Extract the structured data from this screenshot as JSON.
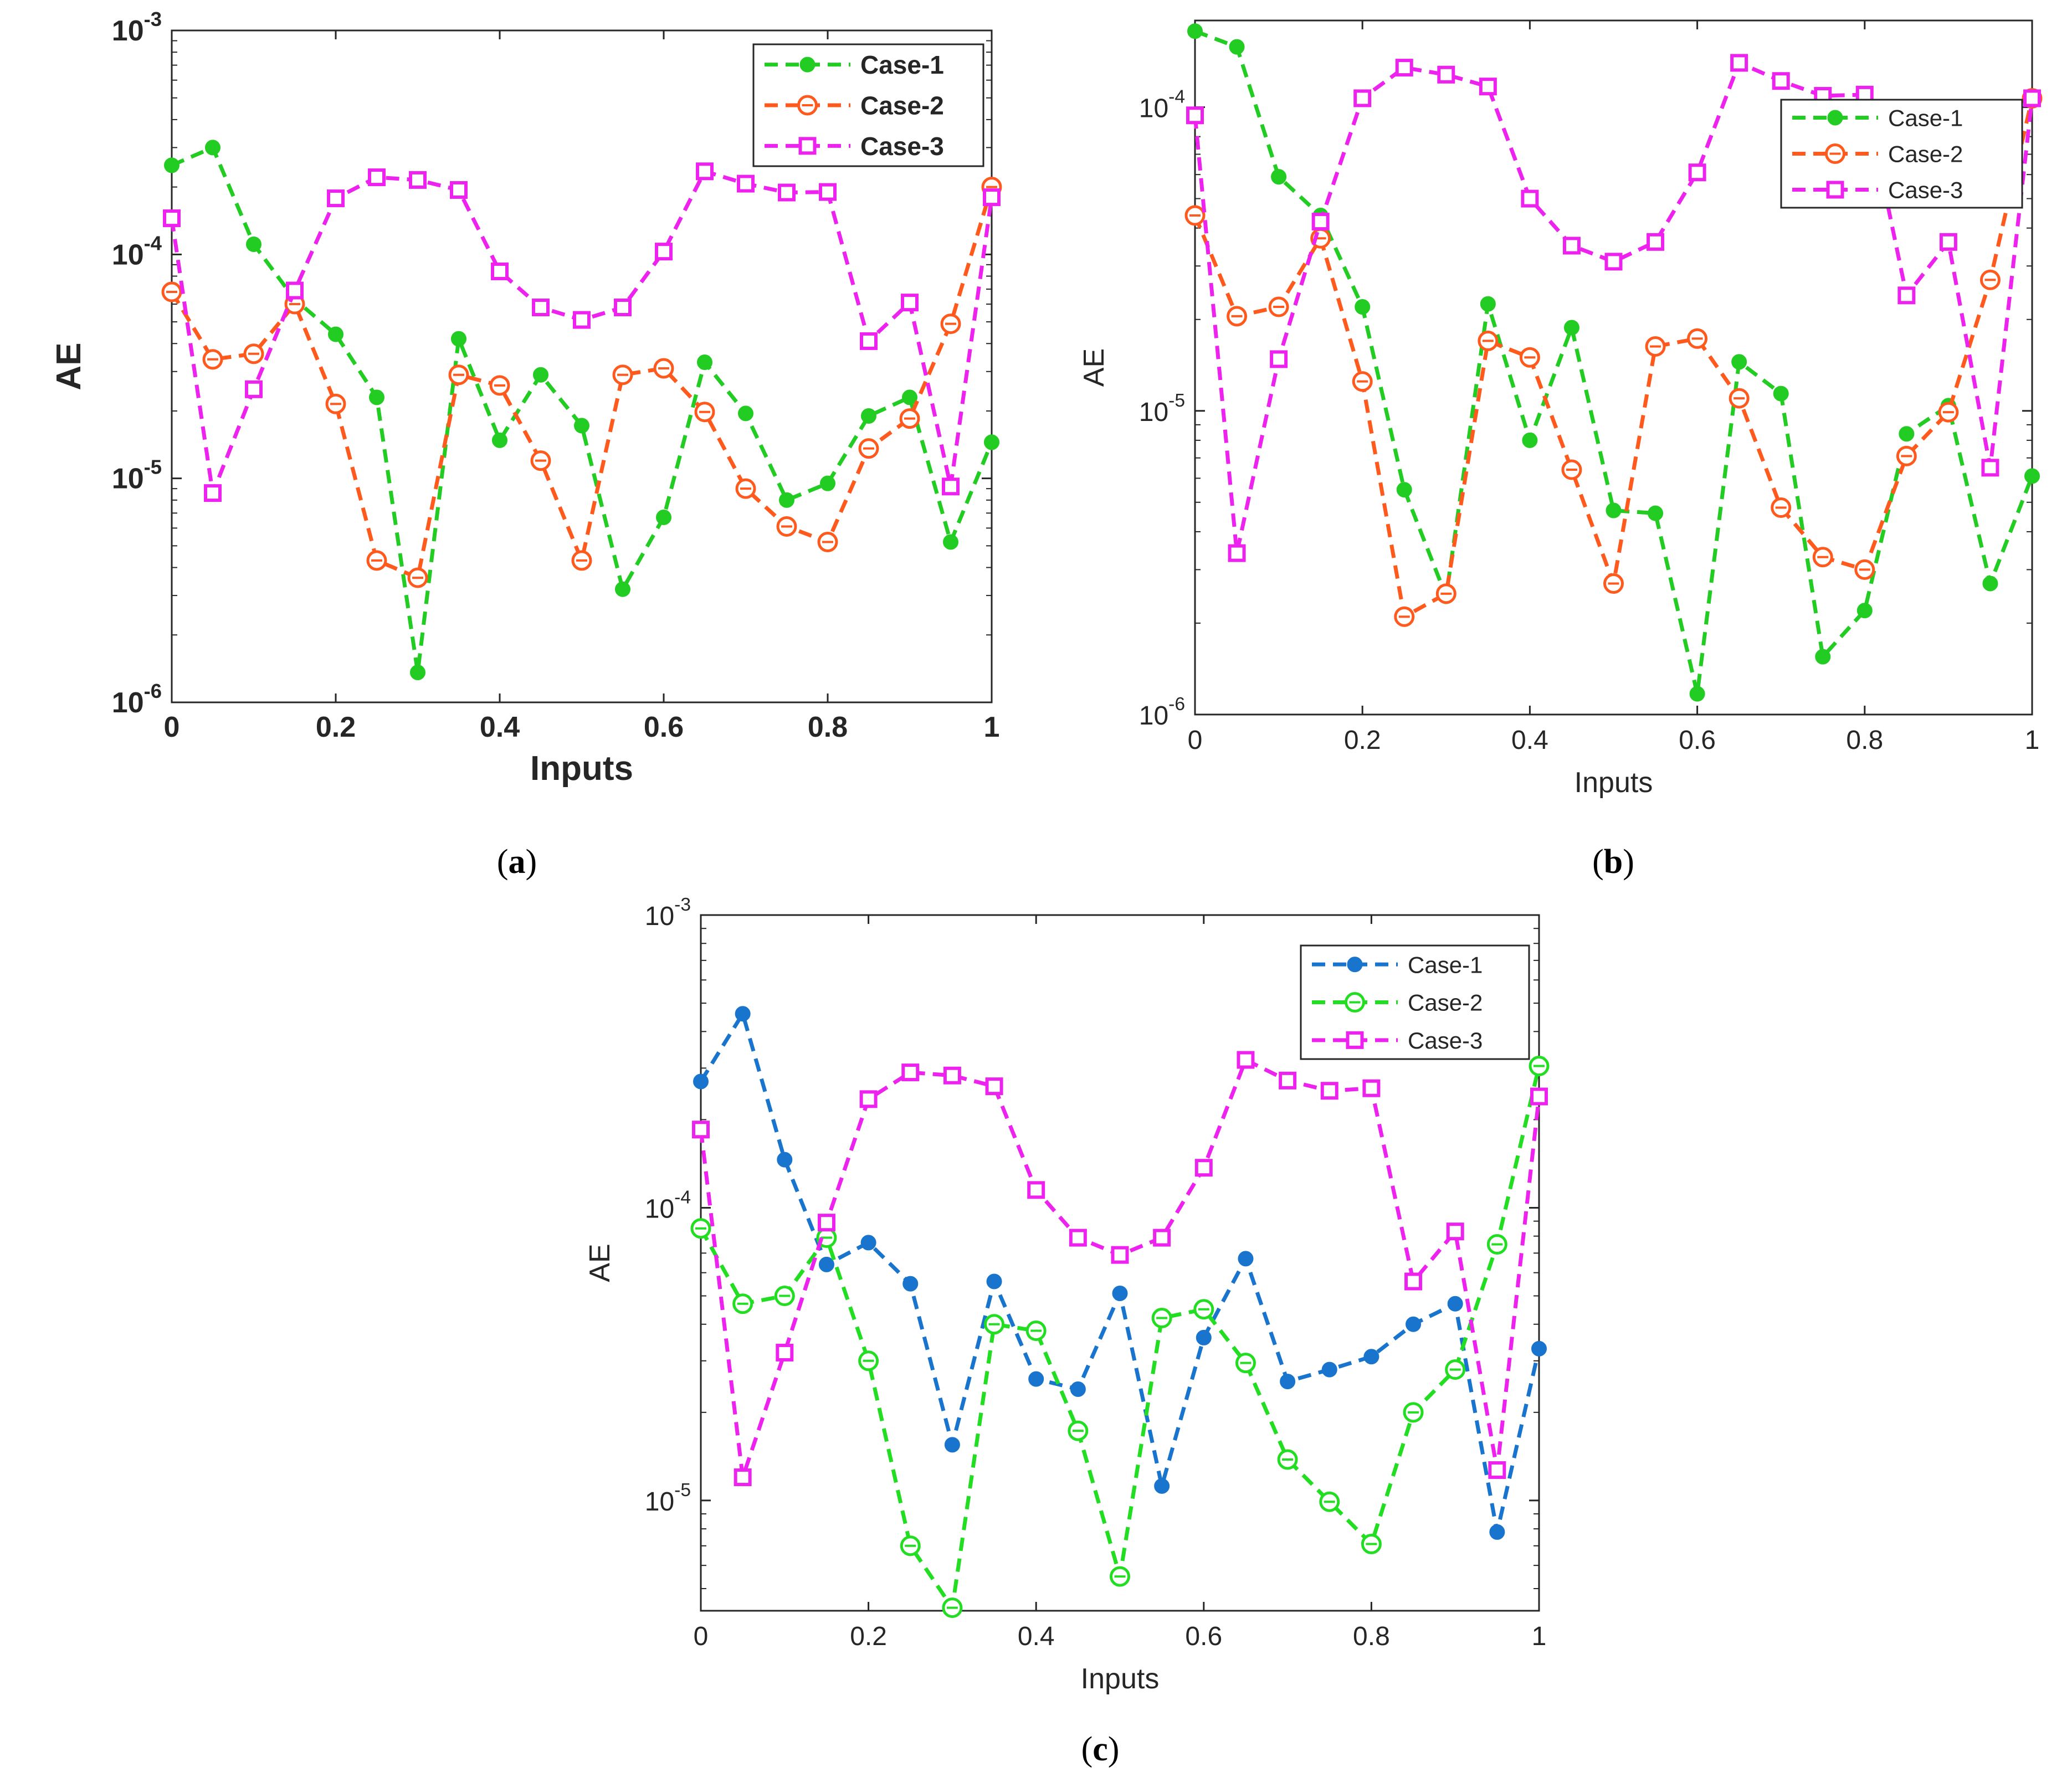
{
  "figure": {
    "panels": [
      {
        "label": "a"
      },
      {
        "label": "b"
      },
      {
        "label": "c"
      }
    ]
  },
  "chart_data": [
    {
      "type": "line",
      "panel": "a",
      "title": "",
      "xlabel": "Inputs",
      "ylabel": "AE",
      "yscale": "log",
      "xlim": [
        0,
        1
      ],
      "ylim": [
        1e-06,
        0.001
      ],
      "bold_text": true,
      "x": [
        0,
        0.05,
        0.1,
        0.15,
        0.2,
        0.25,
        0.3,
        0.35,
        0.4,
        0.45,
        0.5,
        0.55,
        0.6,
        0.65,
        0.7,
        0.75,
        0.8,
        0.85,
        0.9,
        0.95,
        1
      ],
      "xticks": [
        "0",
        "0.2",
        "0.4",
        "0.6",
        "0.8",
        "1"
      ],
      "yticks": [
        {
          "base": "10",
          "exp": "-6"
        },
        {
          "base": "10",
          "exp": "-5"
        },
        {
          "base": "10",
          "exp": "-4"
        },
        {
          "base": "10",
          "exp": "-3"
        }
      ],
      "legend_position": "top-right",
      "series": [
        {
          "name": "Case-1",
          "color": "#22cc22",
          "marker": "dot",
          "values": [
            0.00025,
            0.0003,
            0.000111,
            6.3e-05,
            4.4e-05,
            2.3e-05,
            1.36e-06,
            4.2e-05,
            1.48e-05,
            2.9e-05,
            1.72e-05,
            3.2e-06,
            6.7e-06,
            3.3e-05,
            1.95e-05,
            8e-06,
            9.5e-06,
            1.9e-05,
            2.3e-05,
            5.2e-06,
            1.45e-05
          ]
        },
        {
          "name": "Case-2",
          "color": "#ff5a1e",
          "marker": "circle",
          "values": [
            6.8e-05,
            3.4e-05,
            3.6e-05,
            6e-05,
            2.15e-05,
            4.3e-06,
            3.6e-06,
            2.9e-05,
            2.6e-05,
            1.2e-05,
            4.3e-06,
            2.9e-05,
            3.1e-05,
            1.98e-05,
            9e-06,
            6.1e-06,
            5.2e-06,
            1.36e-05,
            1.85e-05,
            4.9e-05,
            0.0002
          ]
        },
        {
          "name": "Case-3",
          "color": "#ee22ee",
          "marker": "square",
          "values": [
            0.000145,
            8.6e-06,
            2.5e-05,
            6.9e-05,
            0.000178,
            0.000221,
            0.000215,
            0.000194,
            8.4e-05,
            5.8e-05,
            5.1e-05,
            5.8e-05,
            0.000103,
            0.000235,
            0.000207,
            0.000189,
            0.00019,
            4.1e-05,
            6.1e-05,
            9.2e-06,
            0.00018
          ]
        }
      ]
    },
    {
      "type": "line",
      "panel": "b",
      "title": "",
      "xlabel": "Inputs",
      "ylabel": "AE",
      "yscale": "log",
      "xlim": [
        0,
        1
      ],
      "ylim": [
        1e-06,
        0.000193
      ],
      "bold_text": false,
      "x": [
        0,
        0.05,
        0.1,
        0.15,
        0.2,
        0.25,
        0.3,
        0.35,
        0.4,
        0.45,
        0.5,
        0.55,
        0.6,
        0.65,
        0.7,
        0.75,
        0.8,
        0.85,
        0.9,
        0.95,
        1
      ],
      "xticks": [
        "0",
        "0.2",
        "0.4",
        "0.6",
        "0.8",
        "1"
      ],
      "yticks": [
        {
          "base": "10",
          "exp": "-6"
        },
        {
          "base": "10",
          "exp": "-5"
        },
        {
          "base": "10",
          "exp": "-4"
        }
      ],
      "legend_position": "top-right",
      "series": [
        {
          "name": "Case-1",
          "color": "#22cc22",
          "marker": "dot",
          "values": [
            0.000178,
            0.000158,
            5.9e-05,
            4.4e-05,
            2.2e-05,
            5.5e-06,
            2.45e-06,
            2.25e-05,
            8e-06,
            1.88e-05,
            4.7e-06,
            4.6e-06,
            1.17e-06,
            1.45e-05,
            1.14e-05,
            1.55e-06,
            2.2e-06,
            8.4e-06,
            1.04e-05,
            2.7e-06,
            6.1e-06
          ]
        },
        {
          "name": "Case-2",
          "color": "#ff5a1e",
          "marker": "circle",
          "values": [
            4.4e-05,
            2.05e-05,
            2.2e-05,
            3.7e-05,
            1.25e-05,
            2.1e-06,
            2.5e-06,
            1.7e-05,
            1.5e-05,
            6.4e-06,
            2.7e-06,
            1.63e-05,
            1.73e-05,
            1.1e-05,
            4.8e-06,
            3.3e-06,
            3e-06,
            7.1e-06,
            9.9e-06,
            2.7e-05,
            0.000107
          ]
        },
        {
          "name": "Case-3",
          "color": "#ee22ee",
          "marker": "square",
          "values": [
            9.4e-05,
            3.4e-06,
            1.48e-05,
            4.2e-05,
            0.000107,
            0.000135,
            0.000128,
            0.000117,
            5e-05,
            3.5e-05,
            3.1e-05,
            3.6e-05,
            6.1e-05,
            0.00014,
            0.000122,
            0.000109,
            0.00011,
            2.4e-05,
            3.6e-05,
            6.5e-06,
            0.000107
          ]
        }
      ]
    },
    {
      "type": "line",
      "panel": "c",
      "title": "",
      "xlabel": "Inputs",
      "ylabel": "AE",
      "yscale": "log",
      "xlim": [
        0,
        1
      ],
      "ylim": [
        4.2e-06,
        0.001
      ],
      "bold_text": false,
      "x": [
        0,
        0.05,
        0.1,
        0.15,
        0.2,
        0.25,
        0.3,
        0.35,
        0.4,
        0.45,
        0.5,
        0.55,
        0.6,
        0.65,
        0.7,
        0.75,
        0.8,
        0.85,
        0.9,
        0.95,
        1
      ],
      "xticks": [
        "0",
        "0.2",
        "0.4",
        "0.6",
        "0.8",
        "1"
      ],
      "yticks": [
        {
          "base": "10",
          "exp": "-5"
        },
        {
          "base": "10",
          "exp": "-4"
        },
        {
          "base": "10",
          "exp": "-3"
        }
      ],
      "legend_position": "top-right",
      "series": [
        {
          "name": "Case-1",
          "color": "#1874cd",
          "marker": "dot",
          "values": [
            0.00027,
            0.00046,
            0.000146,
            6.4e-05,
            7.6e-05,
            5.5e-05,
            1.55e-05,
            5.6e-05,
            2.6e-05,
            2.4e-05,
            5.1e-05,
            1.12e-05,
            3.6e-05,
            6.7e-05,
            2.55e-05,
            2.8e-05,
            3.1e-05,
            4e-05,
            4.7e-05,
            7.8e-06,
            3.3e-05
          ]
        },
        {
          "name": "Case-2",
          "color": "#22dd22",
          "marker": "circle",
          "values": [
            8.5e-05,
            4.7e-05,
            5e-05,
            7.9e-05,
            3e-05,
            7e-06,
            4.3e-06,
            4e-05,
            3.8e-05,
            1.73e-05,
            5.5e-06,
            4.2e-05,
            4.5e-05,
            2.95e-05,
            1.38e-05,
            9.9e-06,
            7.1e-06,
            2e-05,
            2.8e-05,
            7.5e-05,
            0.000305
          ]
        },
        {
          "name": "Case-3",
          "color": "#ee22ee",
          "marker": "square",
          "values": [
            0.000185,
            1.2e-05,
            3.2e-05,
            8.9e-05,
            0.000235,
            0.00029,
            0.000283,
            0.00026,
            0.000115,
            7.9e-05,
            6.9e-05,
            7.9e-05,
            0.000137,
            0.00032,
            0.000272,
            0.000251,
            0.000256,
            5.6e-05,
            8.3e-05,
            1.27e-05,
            0.00024
          ]
        }
      ]
    }
  ]
}
